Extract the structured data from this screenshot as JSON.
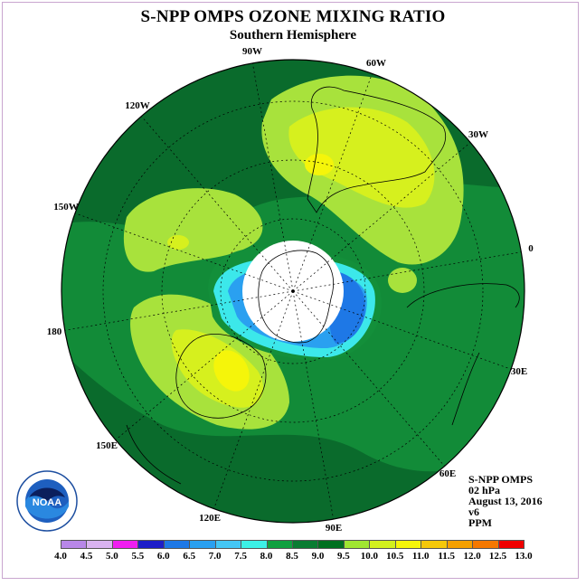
{
  "title": "S-NPP OMPS OZONE MIXING RATIO",
  "subtitle": "Southern Hemisphere",
  "longitude_labels": [
    "90W",
    "60W",
    "30W",
    "0",
    "30E",
    "60E",
    "90E",
    "120E",
    "150E",
    "180",
    "150W",
    "120W"
  ],
  "info": {
    "instrument": "S-NPP OMPS",
    "level": "02 hPa",
    "date": "August 13, 2016",
    "version": "v6",
    "units": "PPM"
  },
  "logo": {
    "text": "NOAA",
    "name": "noaa-logo"
  },
  "color_scale": {
    "ticks": [
      "4.0",
      "4.5",
      "5.0",
      "5.5",
      "6.0",
      "6.5",
      "7.0",
      "7.5",
      "8.0",
      "8.5",
      "9.0",
      "9.5",
      "10.0",
      "10.5",
      "11.0",
      "11.5",
      "12.0",
      "12.5",
      "13.0"
    ],
    "colors": [
      "#b887e8",
      "#d9b3f0",
      "#f01ef0",
      "#1e1ec8",
      "#1e78e6",
      "#2aa0f0",
      "#44c6f4",
      "#3cf0e6",
      "#10a040",
      "#0a7c32",
      "#007020",
      "#a0e632",
      "#d2f01e",
      "#f5f50a",
      "#f5c80a",
      "#f5a000",
      "#f57800",
      "#f00000",
      "#a05a3c"
    ]
  },
  "colors": {
    "dark_green": "#0a6b2c",
    "mid_green": "#138f3a",
    "light_green": "#a8e23c",
    "yellow_green": "#d6f01e",
    "yellow": "#f5f50a",
    "cyan": "#3ce8ea",
    "sky_blue": "#2aa0f0",
    "blue": "#1e78e6",
    "frame": "#c9a6cf"
  }
}
